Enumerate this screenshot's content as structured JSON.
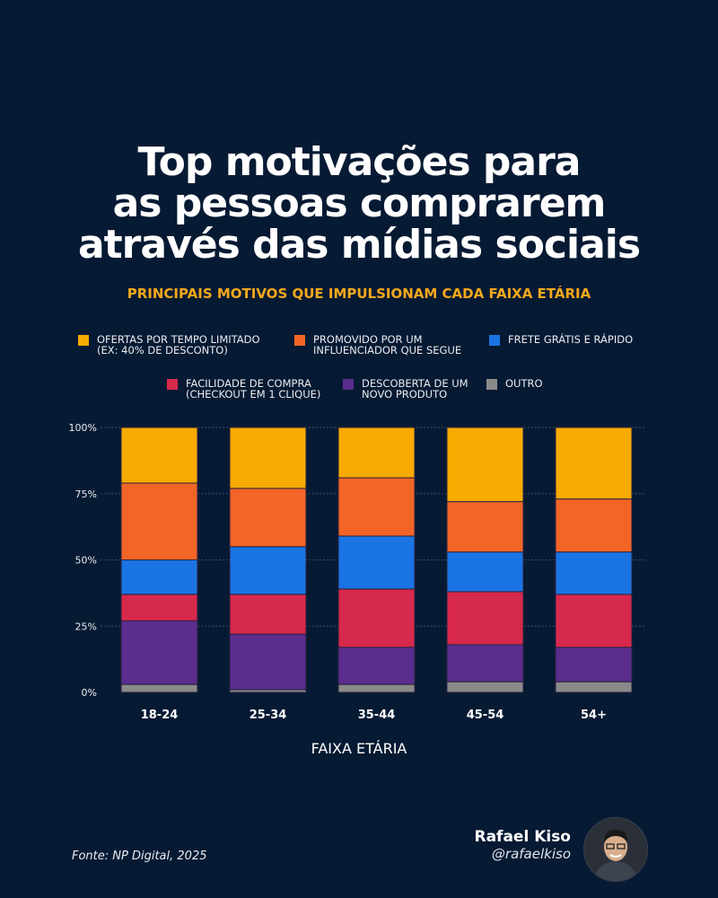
{
  "title_lines": [
    "Top motivações para",
    "as pessoas comprarem",
    "através das mídias sociais"
  ],
  "subtitle": "PRINCIPAIS MOTIVOS QUE IMPULSIONAM CADA FAIXA ETÁRIA",
  "chart_data": {
    "type": "bar",
    "stacked": true,
    "categories": [
      "18-24",
      "25-34",
      "35-44",
      "45-54",
      "54+"
    ],
    "xlabel": "FAIXA ETÁRIA",
    "ylabel": "",
    "ylim": [
      0,
      100
    ],
    "yticks": [
      "0%",
      "25%",
      "50%",
      "75%",
      "100%"
    ],
    "grid": true,
    "legend_placement": "top",
    "series": [
      {
        "name": "OUTRO",
        "color": "#8a8a8a",
        "values": [
          3,
          1,
          3,
          4,
          4
        ]
      },
      {
        "name": "DESCOBERTA DE UM\nNOVO PRODUTO",
        "color": "#5b2d8e",
        "values": [
          24,
          21,
          14,
          14,
          13
        ]
      },
      {
        "name": "FACILIDADE DE COMPRA\n(CHECKOUT EM 1 CLIQUE)",
        "color": "#d7294c",
        "values": [
          10,
          15,
          22,
          20,
          20
        ]
      },
      {
        "name": "FRETE GRÁTIS E RÁPIDO",
        "color": "#1b74e4",
        "values": [
          13,
          18,
          20,
          15,
          16
        ]
      },
      {
        "name": "PROMOVIDO POR UM\nINFLUENCIADOR QUE SEGUE",
        "color": "#f26527",
        "values": [
          29,
          22,
          22,
          19,
          20
        ]
      },
      {
        "name": "OFERTAS POR TEMPO LIMITADO\n(EX: 40% DE DESCONTO)",
        "color": "#f8ab00",
        "values": [
          21,
          23,
          19,
          28,
          27
        ]
      }
    ]
  },
  "source": "Fonte: NP Digital, 2025",
  "author": {
    "name": "Rafael Kiso",
    "handle": "@rafaelkiso"
  }
}
